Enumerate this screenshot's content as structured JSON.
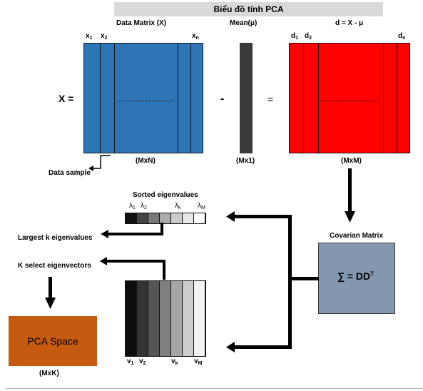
{
  "title": "Biểu đồ tính PCA",
  "data_matrix": {
    "label": "Data Matrix (X)",
    "col_first": "x",
    "col_first_sub": "1",
    "col_second": "x",
    "col_second_sub": "2",
    "col_last": "x",
    "col_last_sub": "n",
    "size": "(MxN)",
    "data_sample_label": "Data sample"
  },
  "x_equals": "X =",
  "minus_sign": "-",
  "equals_sign": "=",
  "mean": {
    "label": "Mean(μ)",
    "size": "(Mx1)"
  },
  "diff_matrix": {
    "label": "d = X - μ",
    "col_first": "d",
    "col_first_sub": "1",
    "col_second": "d",
    "col_second_sub": "2",
    "col_last": "d",
    "col_last_sub": "n",
    "size": "(MxM)"
  },
  "covariance": {
    "label": "Covarian Matrix",
    "formula": "∑ = DD",
    "formula_sup": "T"
  },
  "eigenvalues": {
    "label": "Sorted eigenvalues",
    "symbols": [
      {
        "s": "λ",
        "sub": "1"
      },
      {
        "s": "λ",
        "sub": "2"
      },
      {
        "s": "λ",
        "sub": "k"
      },
      {
        "s": "λ",
        "sub": "M"
      }
    ],
    "shades": [
      "#111111",
      "#444444",
      "#777777",
      "#aaaaaa",
      "#cccccc",
      "#e8e8e8",
      "#ffffff"
    ]
  },
  "eigenvectors": {
    "labels": [
      {
        "s": "v",
        "sub": "1"
      },
      {
        "s": "v",
        "sub": "2"
      },
      {
        "s": "v",
        "sub": "k"
      },
      {
        "s": "v",
        "sub": "M"
      }
    ],
    "shades": [
      "#0d0d0d",
      "#333333",
      "#555555",
      "#7f7f7f",
      "#a6a6a6",
      "#cccccc",
      "#f2f2f2"
    ]
  },
  "largest_k_label": "Largest k eigenvalues",
  "k_select_label": "K select eigenvectors",
  "pca_space": {
    "label": "PCA Space",
    "size": "(MxK)"
  },
  "colors": {
    "data_matrix": "#2e75b6",
    "diff_matrix": "#ff0000",
    "covariance": "#8497b0",
    "pca_space": "#c55a11",
    "mean_bar": "#3a3a3a"
  }
}
